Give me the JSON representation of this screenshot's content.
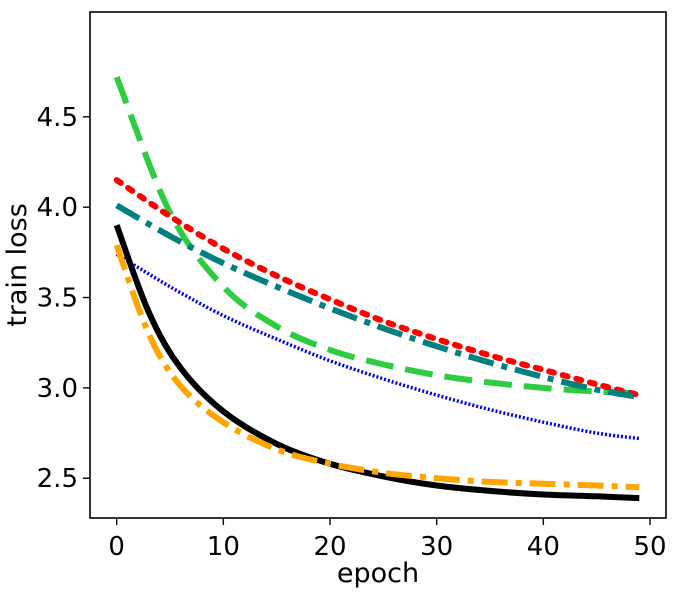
{
  "chart_data": {
    "type": "line",
    "title": "",
    "xlabel": "epoch",
    "ylabel": "train loss",
    "xlim": [
      -2.5,
      51.5
    ],
    "ylim": [
      2.28,
      5.08
    ],
    "xticks": [
      0,
      10,
      20,
      30,
      40,
      50
    ],
    "yticks": [
      2.5,
      3.0,
      3.5,
      4.0,
      4.5
    ],
    "xtick_labels": [
      "0",
      "10",
      "20",
      "30",
      "40",
      "50"
    ],
    "ytick_labels": [
      "2.5",
      "3.0",
      "3.5",
      "4.0",
      "4.5"
    ],
    "grid": false,
    "legend": "none",
    "series": [
      {
        "color": "#2ecc40",
        "style": "dashed",
        "x": [
          0,
          5,
          10,
          15,
          20,
          25,
          30,
          35,
          40,
          45,
          49
        ],
        "values": [
          4.72,
          3.97,
          3.56,
          3.34,
          3.21,
          3.13,
          3.07,
          3.03,
          3.0,
          2.98,
          2.97
        ]
      },
      {
        "color": "#ff0000",
        "style": "dotted",
        "x": [
          0,
          5,
          10,
          15,
          20,
          25,
          30,
          35,
          40,
          45,
          49
        ],
        "values": [
          4.15,
          3.95,
          3.77,
          3.62,
          3.49,
          3.37,
          3.27,
          3.18,
          3.1,
          3.02,
          2.96
        ]
      },
      {
        "color": "#008080",
        "style": "dashdot",
        "x": [
          0,
          5,
          10,
          15,
          20,
          25,
          30,
          35,
          40,
          45,
          49
        ],
        "values": [
          4.01,
          3.84,
          3.69,
          3.56,
          3.44,
          3.33,
          3.23,
          3.14,
          3.06,
          2.99,
          2.95
        ]
      },
      {
        "color": "#0000ee",
        "style": "dense-dotted",
        "x": [
          0,
          5,
          10,
          15,
          20,
          25,
          30,
          35,
          40,
          45,
          49
        ],
        "values": [
          3.74,
          3.56,
          3.4,
          3.27,
          3.15,
          3.05,
          2.96,
          2.88,
          2.81,
          2.75,
          2.72
        ]
      },
      {
        "color": "#000000",
        "style": "solid",
        "x": [
          0,
          3,
          6,
          10,
          15,
          20,
          25,
          30,
          35,
          40,
          45,
          49
        ],
        "values": [
          3.9,
          3.42,
          3.11,
          2.87,
          2.69,
          2.58,
          2.51,
          2.46,
          2.43,
          2.41,
          2.4,
          2.39
        ]
      },
      {
        "color": "#ffa500",
        "style": "dashdot",
        "x": [
          0,
          3,
          6,
          10,
          15,
          20,
          25,
          30,
          35,
          40,
          45,
          49
        ],
        "values": [
          3.79,
          3.3,
          3.01,
          2.81,
          2.66,
          2.58,
          2.53,
          2.5,
          2.48,
          2.47,
          2.46,
          2.45
        ]
      }
    ]
  }
}
